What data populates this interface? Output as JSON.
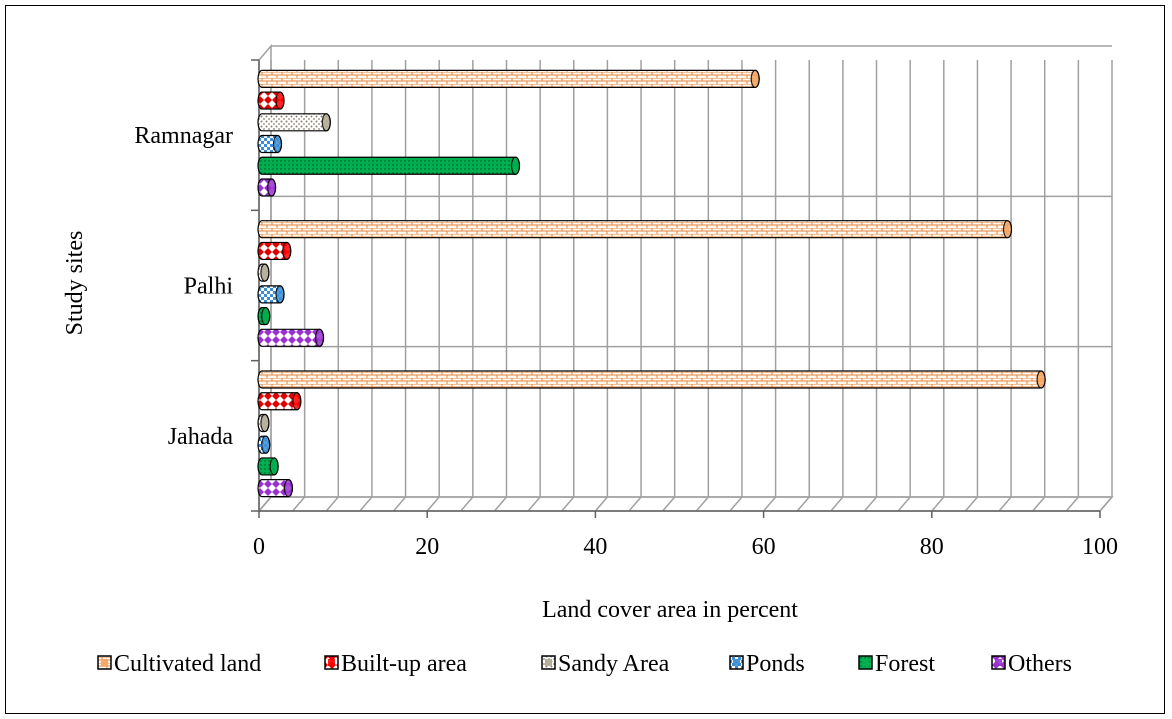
{
  "chart_data": {
    "type": "bar",
    "orientation": "horizontal",
    "style": "3d-cylinder",
    "categories": [
      "Jahada",
      "Palhi",
      "Ramnagar"
    ],
    "series": [
      {
        "name": "Cultivated land",
        "values": [
          93,
          89,
          59
        ],
        "color": "#f4a460",
        "pattern": "brick"
      },
      {
        "name": "Built-up area",
        "values": [
          4.5,
          3.3,
          2.5
        ],
        "color": "#ff0000",
        "pattern": "diamond"
      },
      {
        "name": "Sandy Area",
        "values": [
          0.7,
          0.7,
          8
        ],
        "color": "#b0a890",
        "pattern": "dots"
      },
      {
        "name": "Ponds",
        "values": [
          0.8,
          2.5,
          2.2
        ],
        "color": "#3a8fd8",
        "pattern": "checker"
      },
      {
        "name": "Forest",
        "values": [
          1.8,
          0.8,
          30.5
        ],
        "color": "#00b050",
        "pattern": "dots-fine"
      },
      {
        "name": "Others",
        "values": [
          3.5,
          7.2,
          1.5
        ],
        "color": "#9b30d0",
        "pattern": "checker"
      }
    ],
    "xlabel": "Land cover area in percent",
    "ylabel": "Study sites",
    "xlim": [
      0,
      100
    ],
    "xticks": [
      "0",
      "20",
      "40",
      "60",
      "80",
      "100"
    ],
    "xtick_step": 20,
    "minor_step": 4,
    "grid": true,
    "legend_position": "bottom"
  }
}
